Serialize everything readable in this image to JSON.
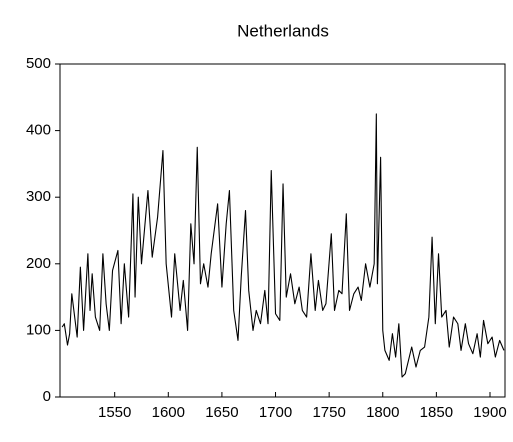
{
  "chart_data": {
    "type": "line",
    "title": "Netherlands",
    "x": [
      1501,
      1503,
      1506,
      1508,
      1510,
      1515,
      1518,
      1521,
      1525,
      1527,
      1529,
      1532,
      1536,
      1539,
      1542,
      1545,
      1548,
      1553,
      1556,
      1559,
      1563,
      1567,
      1569,
      1572,
      1575,
      1581,
      1585,
      1590,
      1595,
      1598,
      1603,
      1606,
      1611,
      1614,
      1618,
      1621,
      1624,
      1627,
      1630,
      1633,
      1637,
      1640,
      1646,
      1650,
      1654,
      1657,
      1661,
      1665,
      1668,
      1672,
      1675,
      1679,
      1682,
      1686,
      1690,
      1693,
      1696,
      1700,
      1704,
      1707,
      1710,
      1714,
      1718,
      1722,
      1725,
      1729,
      1733,
      1737,
      1740,
      1744,
      1747,
      1752,
      1755,
      1759,
      1762,
      1766,
      1769,
      1773,
      1777,
      1780,
      1784,
      1788,
      1792,
      1794,
      1795,
      1798,
      1800,
      1802,
      1806,
      1809,
      1812,
      1815,
      1818,
      1821,
      1824,
      1827,
      1831,
      1835,
      1839,
      1843,
      1846,
      1849,
      1852,
      1855,
      1859,
      1862,
      1866,
      1870,
      1873,
      1877,
      1880,
      1884,
      1888,
      1891,
      1894,
      1898,
      1902,
      1905,
      1909,
      1913
    ],
    "series": [
      {
        "color": "#000000",
        "values": [
          105,
          110,
          78,
          95,
          155,
          90,
          195,
          100,
          215,
          130,
          185,
          120,
          100,
          215,
          140,
          100,
          190,
          220,
          110,
          200,
          120,
          305,
          150,
          300,
          200,
          310,
          210,
          270,
          370,
          200,
          120,
          215,
          130,
          175,
          100,
          260,
          200,
          375,
          170,
          200,
          165,
          215,
          290,
          165,
          260,
          310,
          130,
          85,
          180,
          280,
          160,
          100,
          130,
          110,
          160,
          110,
          340,
          125,
          115,
          320,
          150,
          185,
          140,
          165,
          130,
          120,
          215,
          130,
          175,
          130,
          140,
          245,
          130,
          160,
          155,
          275,
          130,
          155,
          165,
          145,
          200,
          165,
          200,
          425,
          170,
          360,
          100,
          70,
          55,
          95,
          60,
          110,
          30,
          35,
          55,
          75,
          45,
          70,
          75,
          120,
          240,
          110,
          215,
          120,
          130,
          75,
          120,
          110,
          70,
          110,
          80,
          65,
          95,
          60,
          115,
          80,
          90,
          60,
          85,
          70
        ]
      }
    ],
    "xlim": [
      1499,
      1914
    ],
    "xticks": [
      1550,
      1600,
      1650,
      1700,
      1750,
      1800,
      1850,
      1900
    ],
    "ylim": [
      0,
      500
    ],
    "yticks": [
      0,
      100,
      200,
      300,
      400,
      500
    ],
    "grid": false
  }
}
